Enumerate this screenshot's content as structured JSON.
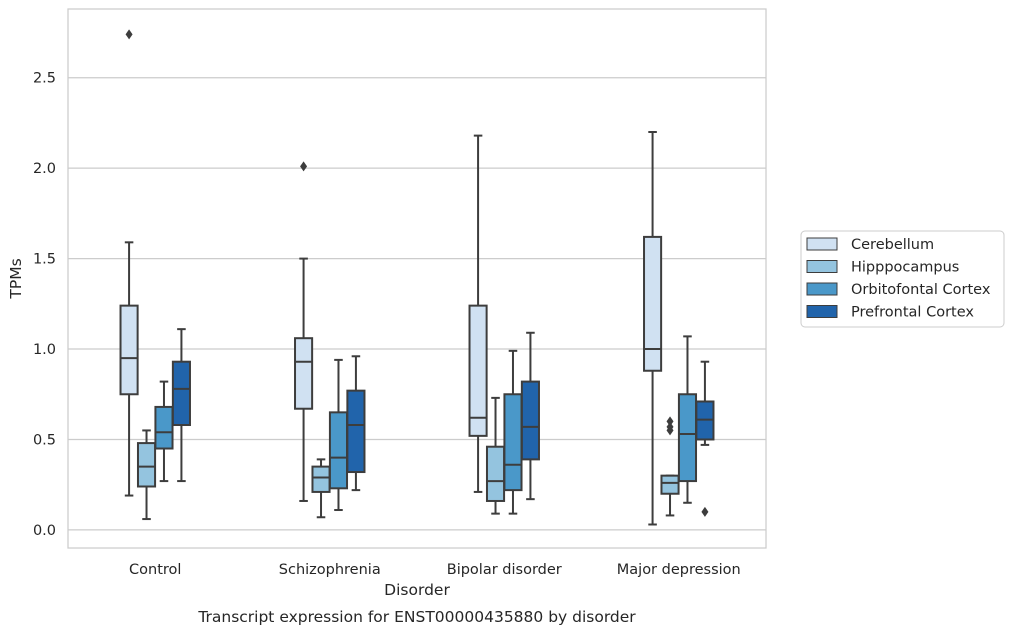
{
  "chart_data": {
    "type": "box",
    "title": "",
    "caption": "Transcript expression for ENST00000435880 by disorder",
    "xlabel": "Disorder",
    "ylabel": "TPMs",
    "ylim": [
      -0.1,
      2.88
    ],
    "yticks": [
      0.0,
      0.5,
      1.0,
      1.5,
      2.0,
      2.5
    ],
    "ytick_labels": [
      "0.0",
      "0.5",
      "1.0",
      "1.5",
      "2.0",
      "2.5"
    ],
    "grid": "horizontal",
    "legend_position": "right",
    "categories": [
      "Control",
      "Schizophrenia",
      "Bipolar disorder",
      "Major depression"
    ],
    "series": [
      {
        "name": "Cerebellum",
        "color": "#d0e1f2",
        "boxes": [
          {
            "whislo": 0.19,
            "q1": 0.75,
            "med": 0.95,
            "q3": 1.24,
            "whishi": 1.59,
            "fliers": [
              2.74
            ]
          },
          {
            "whislo": 0.16,
            "q1": 0.67,
            "med": 0.93,
            "q3": 1.06,
            "whishi": 1.5,
            "fliers": [
              2.01
            ]
          },
          {
            "whislo": 0.21,
            "q1": 0.52,
            "med": 0.62,
            "q3": 1.24,
            "whishi": 2.18,
            "fliers": []
          },
          {
            "whislo": 0.03,
            "q1": 0.88,
            "med": 1.0,
            "q3": 1.62,
            "whishi": 2.2,
            "fliers": []
          }
        ]
      },
      {
        "name": "Hipppocampus",
        "color": "#94c4df",
        "boxes": [
          {
            "whislo": 0.06,
            "q1": 0.24,
            "med": 0.35,
            "q3": 0.48,
            "whishi": 0.55,
            "fliers": []
          },
          {
            "whislo": 0.07,
            "q1": 0.21,
            "med": 0.29,
            "q3": 0.35,
            "whishi": 0.39,
            "fliers": []
          },
          {
            "whislo": 0.09,
            "q1": 0.16,
            "med": 0.27,
            "q3": 0.46,
            "whishi": 0.73,
            "fliers": []
          },
          {
            "whislo": 0.08,
            "q1": 0.2,
            "med": 0.26,
            "q3": 0.3,
            "whishi": 0.3,
            "fliers": [
              0.55,
              0.57,
              0.6
            ]
          }
        ]
      },
      {
        "name": "Orbitofontal Cortex",
        "color": "#4a98c9",
        "boxes": [
          {
            "whislo": 0.27,
            "q1": 0.45,
            "med": 0.54,
            "q3": 0.68,
            "whishi": 0.82,
            "fliers": []
          },
          {
            "whislo": 0.11,
            "q1": 0.23,
            "med": 0.4,
            "q3": 0.65,
            "whishi": 0.94,
            "fliers": []
          },
          {
            "whislo": 0.09,
            "q1": 0.22,
            "med": 0.36,
            "q3": 0.75,
            "whishi": 0.99,
            "fliers": []
          },
          {
            "whislo": 0.15,
            "q1": 0.27,
            "med": 0.53,
            "q3": 0.75,
            "whishi": 1.07,
            "fliers": []
          }
        ]
      },
      {
        "name": "Prefrontal Cortex",
        "color": "#2164ab",
        "boxes": [
          {
            "whislo": 0.27,
            "q1": 0.58,
            "med": 0.78,
            "q3": 0.93,
            "whishi": 1.11,
            "fliers": []
          },
          {
            "whislo": 0.22,
            "q1": 0.32,
            "med": 0.58,
            "q3": 0.77,
            "whishi": 0.96,
            "fliers": []
          },
          {
            "whislo": 0.17,
            "q1": 0.39,
            "med": 0.57,
            "q3": 0.82,
            "whishi": 1.09,
            "fliers": []
          },
          {
            "whislo": 0.47,
            "q1": 0.5,
            "med": 0.61,
            "q3": 0.71,
            "whishi": 0.93,
            "fliers": [
              0.1
            ]
          }
        ]
      }
    ]
  }
}
